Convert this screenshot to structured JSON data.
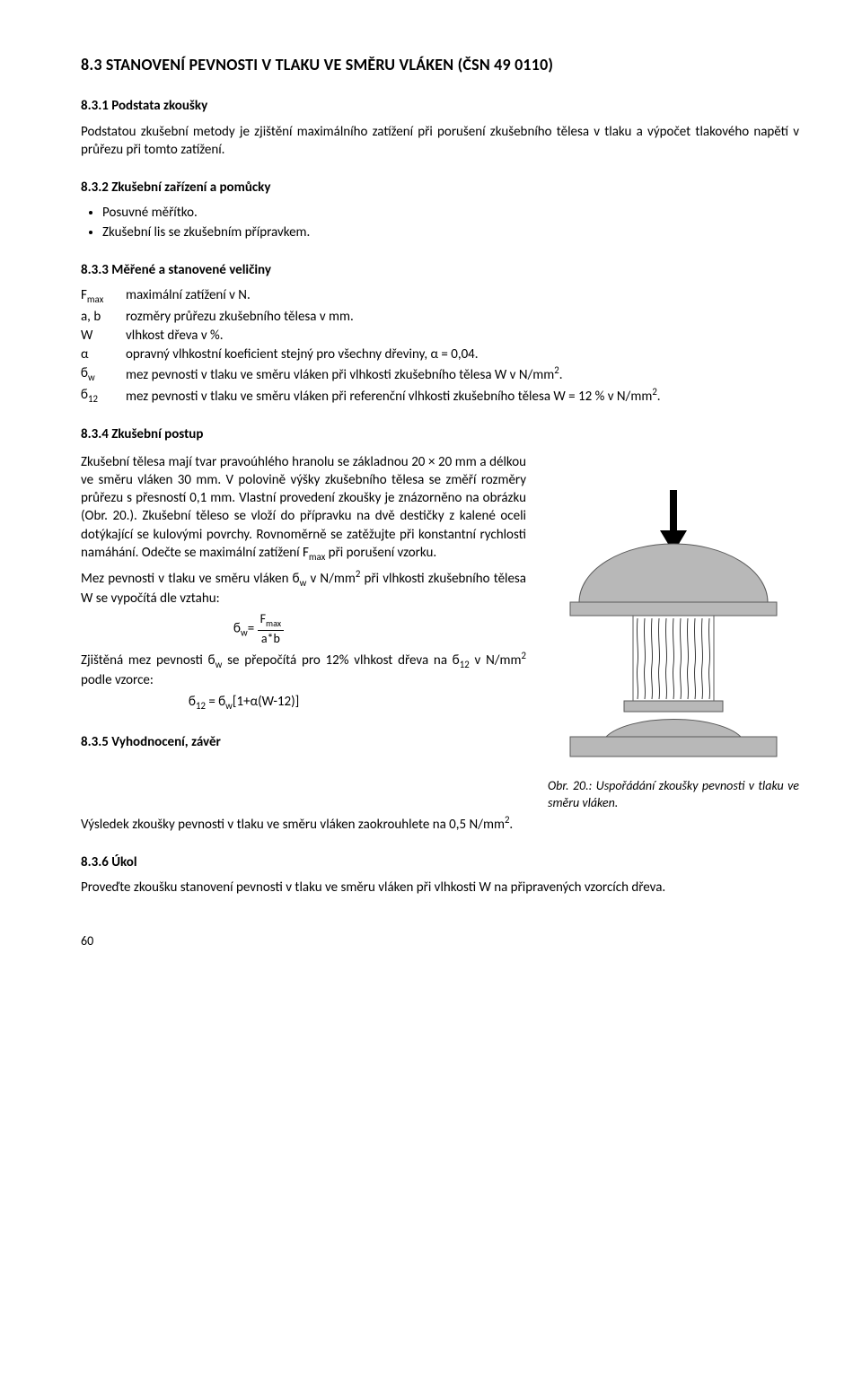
{
  "headings": {
    "h83": "8.3 STANOVENÍ PEVNOSTI V TLAKU VE SMĚRU VLÁKEN (ČSN 49 0110)",
    "h831": "8.3.1 Podstata zkoušky",
    "h832": "8.3.2 Zkušební zařízení a pomůcky",
    "h833": "8.3.3 Měřené a stanovené veličiny",
    "h834": "8.3.4 Zkušební postup",
    "h835": "8.3.5 Vyhodnocení, závěr",
    "h836": "8.3.6 Úkol"
  },
  "p831": "Podstatou zkušební metody je zjištění maximálního zatížení při porušení zkušebního tělesa v tlaku a výpočet tlakového napětí v průřezu při tomto zatížení.",
  "bullets832": {
    "b1": "Posuvné měřítko.",
    "b2": "Zkušební lis se zkušebním přípravkem."
  },
  "defs833": {
    "r1": {
      "sym": "F",
      "sub": "max",
      "txt": "maximální zatížení v N."
    },
    "r2": {
      "sym": "a, b",
      "txt": "rozměry průřezu zkušebního tělesa v mm."
    },
    "r3": {
      "sym": "W",
      "txt": "vlhkost dřeva v %."
    },
    "r4": {
      "sym": "α",
      "txt": "opravný vlhkostní koeficient stejný pro všechny dřeviny, α = 0,04."
    },
    "r5": {
      "sym": "ϭ",
      "sub": "w",
      "txt_pre": "mez pevnosti v tlaku ve směru vláken při vlhkosti zkušebního tělesa W v N/mm",
      "sup": "2",
      "txt_post": "."
    },
    "r6": {
      "sym": "ϭ",
      "sub": "12",
      "txt_pre": "mez pevnosti v tlaku ve směru vláken při referenční vlhkosti zkušebního tělesa W = 12 % v N/mm",
      "sup": "2",
      "txt_post": "."
    }
  },
  "p834": {
    "line1": "Zkušební tělesa mají tvar pravoúhlého hranolu se základnou 20 × 20 mm a délkou ve směru vláken 30 mm. V polovině výšky zkušebního tělesa se změří rozměry průřezu s přesností 0,1 mm. Vlastní provedení zkoušky je znázorněno na obrázku (Obr. 20.). Zkušební těleso se vloží do přípravku na dvě destičky z kalené oceli dotýkající se kulovými povrchy. Rovnoměrně se zatěžujte při konstantní rychlosti namáhání. Odečte se maximální zatížení F",
    "line1_sub": "max",
    "line1_tail": " při porušení vzorku.",
    "line2_pre": "Mez pevnosti v tlaku ve směru vláken ϭ",
    "line2_sub": "w",
    "line2_mid": " v N/mm",
    "line2_sup": "2",
    "line2_tail": " při vlhkosti zkušebního tělesa W se vypočítá dle vztahu:",
    "formula1_lhs": "ϭ",
    "formula1_lhs_sub": "w",
    "formula1_eq": "= ",
    "formula1_num": "F",
    "formula1_num_sub": "max",
    "formula1_den": "a*b",
    "line3_pre": "Zjištěná mez pevnosti ϭ",
    "line3_sub1": "w",
    "line3_mid1": " se přepočítá pro 12% vlhkost dřeva na ϭ",
    "line3_sub2": "12",
    "line3_mid2": " v N/mm",
    "line3_sup": "2 ",
    "line3_tail": "podle vzorce:",
    "formula2": "ϭ",
    "formula2_s1": "12",
    "formula2_mid": " = ϭ",
    "formula2_s2": "w",
    "formula2_tail": "[1+α(W-12)]"
  },
  "caption": {
    "pre": "Obr. 20.: Uspořádání zkoušky pevnosti v tlaku ve směru vláken."
  },
  "p835": {
    "pre": "Výsledek zkoušky pevnosti v tlaku ve směru vláken zaokrouhlete na 0,5 N/mm",
    "sup": "2",
    "post": "."
  },
  "p836": "Proveďte zkoušku stanovení pevnosti v tlaku ve směru vláken při vlhkosti W na připravených vzorcích dřeva.",
  "pagenum": "60",
  "fig": {
    "colors": {
      "arrow": "#000000",
      "dome_fill": "#b8b8b8",
      "dome_stroke": "#5a5a5a",
      "block_fill": "#b8b8b8",
      "block_stroke": "#5a5a5a",
      "line": "#3a3a3a",
      "mid_block_fill": "#ffffff"
    }
  }
}
